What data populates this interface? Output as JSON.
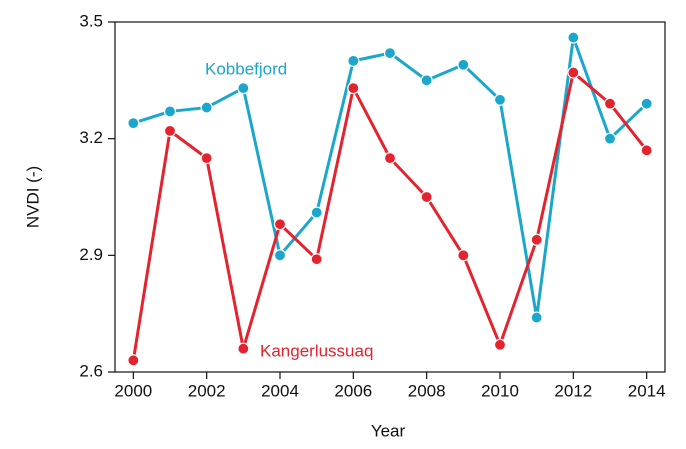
{
  "chart_data": {
    "type": "line",
    "x_label": "Year",
    "y_label": "NVDI (-)",
    "x": [
      2000,
      2001,
      2002,
      2003,
      2004,
      2005,
      2006,
      2007,
      2008,
      2009,
      2010,
      2011,
      2012,
      2013,
      2014
    ],
    "series": [
      {
        "name": "Kobbefjord",
        "color": "#1ba7cb",
        "values": [
          3.24,
          3.27,
          3.28,
          3.33,
          2.9,
          3.01,
          3.4,
          3.42,
          3.35,
          3.39,
          3.3,
          2.74,
          3.46,
          3.2,
          3.29
        ]
      },
      {
        "name": "Kangerlussuaq",
        "color": "#e3232e",
        "values": [
          2.63,
          3.22,
          3.15,
          2.66,
          2.98,
          2.89,
          3.33,
          3.15,
          3.05,
          2.9,
          2.67,
          2.94,
          3.37,
          3.29,
          3.17
        ]
      }
    ],
    "xlim": [
      1999.5,
      2014.5
    ],
    "xticks": [
      2000,
      2002,
      2004,
      2006,
      2008,
      2010,
      2012,
      2014
    ],
    "ylim": [
      2.6,
      3.5
    ],
    "yticks": [
      2.6,
      2.9,
      3.2,
      3.5
    ]
  }
}
